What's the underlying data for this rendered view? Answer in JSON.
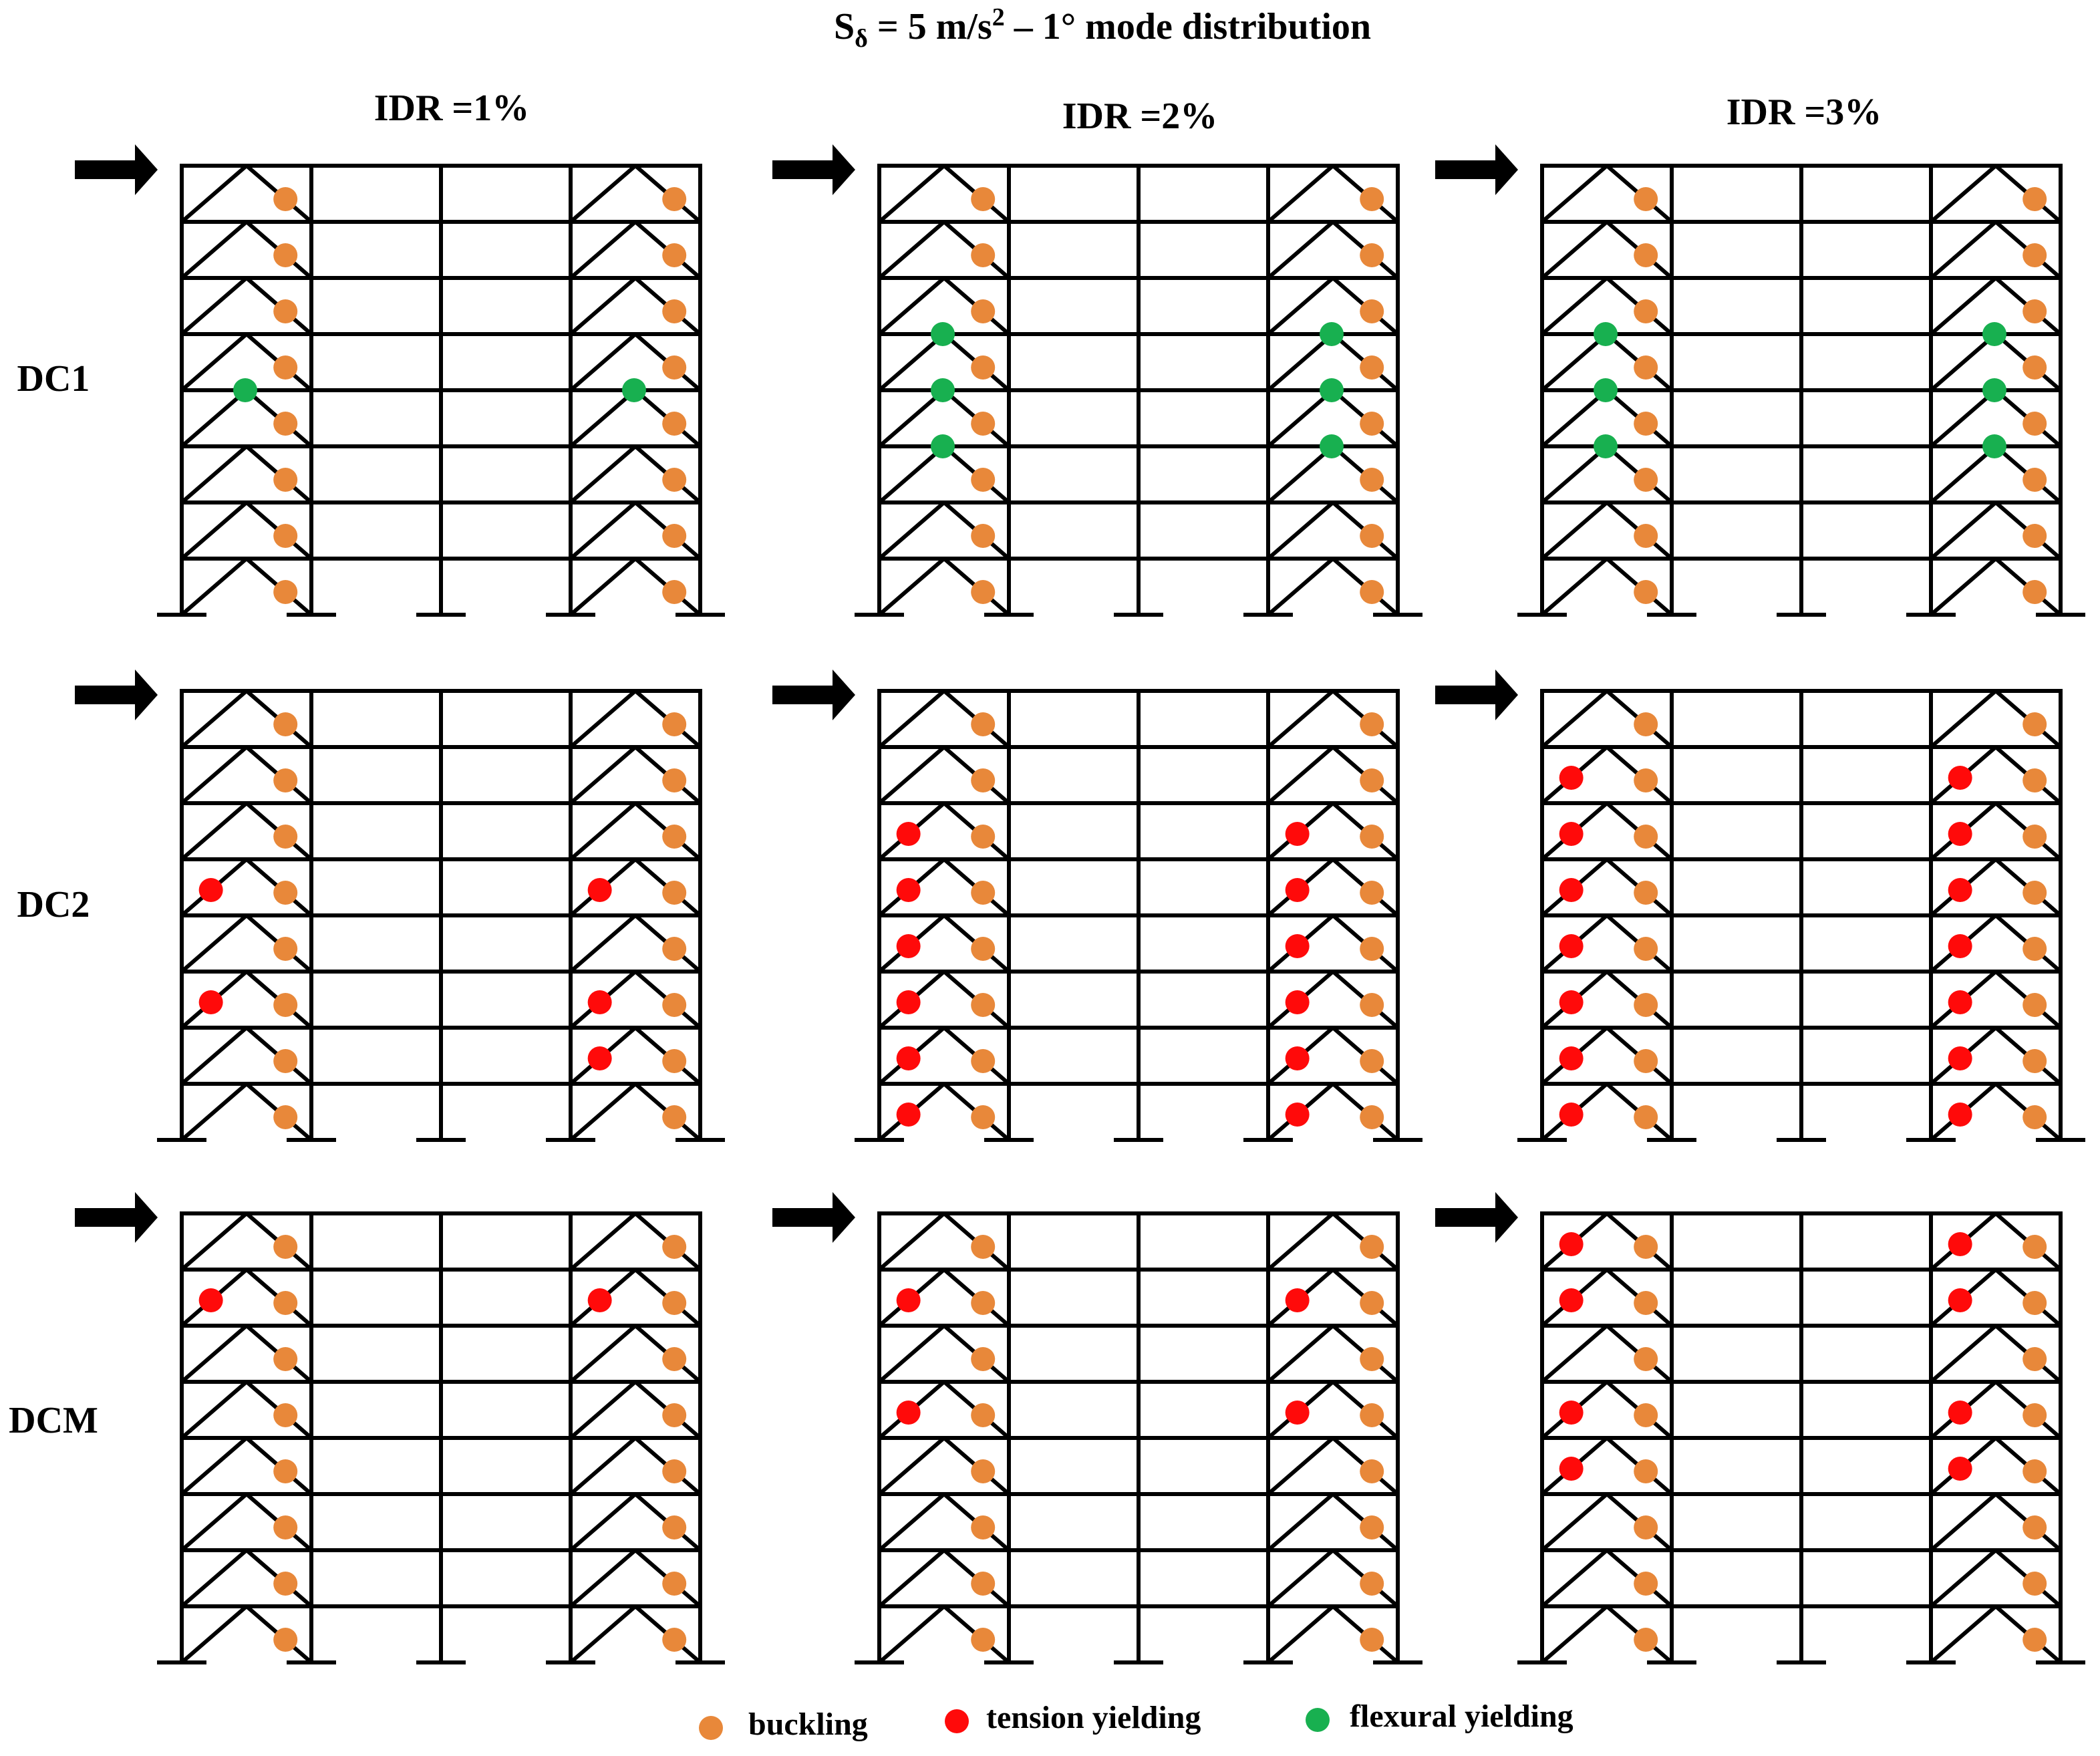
{
  "title": {
    "prefix": "S",
    "subscript": "δ",
    "middle": " = 5 m/s",
    "superscript": "2",
    "suffix": " – 1° mode distribution"
  },
  "columns": [
    "IDR =1%",
    "IDR =2%",
    "IDR =3%"
  ],
  "rows": [
    "DC1",
    "DC2",
    "DCM"
  ],
  "stories": 8,
  "colors": {
    "buckling": "#e8883a",
    "tension_yielding": "#ff0a0a",
    "flexural_yielding": "#18b050",
    "frame": "#000000"
  },
  "legend": [
    {
      "key": "buckling",
      "label": "buckling"
    },
    {
      "key": "tension_yielding",
      "label": "tension yielding"
    },
    {
      "key": "flexural_yielding",
      "label": "flexural yielding"
    }
  ],
  "panels": [
    {
      "row": "DC1",
      "column": "IDR =1%",
      "buckling_stories": [
        1,
        2,
        3,
        4,
        5,
        6,
        7,
        8
      ],
      "tension_yielding_stories": [],
      "flexural_yielding_levels": [
        4
      ]
    },
    {
      "row": "DC1",
      "column": "IDR =2%",
      "buckling_stories": [
        1,
        2,
        3,
        4,
        5,
        6,
        7,
        8
      ],
      "tension_yielding_stories": [],
      "flexural_yielding_levels": [
        3,
        4,
        5
      ]
    },
    {
      "row": "DC1",
      "column": "IDR =3%",
      "buckling_stories": [
        1,
        2,
        3,
        4,
        5,
        6,
        7,
        8
      ],
      "tension_yielding_stories": [],
      "flexural_yielding_levels": [
        3,
        4,
        5
      ]
    },
    {
      "row": "DC2",
      "column": "IDR =1%",
      "buckling_stories": [
        1,
        2,
        3,
        4,
        5,
        6,
        7,
        8
      ],
      "tension_yielding_stories": [
        3,
        5
      ],
      "tension_yielding_stories_right": [
        2,
        3,
        5
      ],
      "flexural_yielding_levels": []
    },
    {
      "row": "DC2",
      "column": "IDR =2%",
      "buckling_stories": [
        1,
        2,
        3,
        4,
        5,
        6,
        7,
        8
      ],
      "tension_yielding_stories": [
        1,
        2,
        3,
        4,
        5,
        6
      ],
      "flexural_yielding_levels": []
    },
    {
      "row": "DC2",
      "column": "IDR =3%",
      "buckling_stories": [
        1,
        2,
        3,
        4,
        5,
        6,
        7,
        8
      ],
      "tension_yielding_stories": [
        1,
        2,
        3,
        4,
        5,
        6,
        7
      ],
      "flexural_yielding_levels": []
    },
    {
      "row": "DCM",
      "column": "IDR =1%",
      "buckling_stories": [
        1,
        2,
        3,
        4,
        5,
        6,
        7,
        8
      ],
      "tension_yielding_stories": [
        7
      ],
      "flexural_yielding_levels": []
    },
    {
      "row": "DCM",
      "column": "IDR =2%",
      "buckling_stories": [
        1,
        2,
        3,
        4,
        5,
        6,
        7,
        8
      ],
      "tension_yielding_stories": [
        5,
        7
      ],
      "flexural_yielding_levels": []
    },
    {
      "row": "DCM",
      "column": "IDR =3%",
      "buckling_stories": [
        1,
        2,
        3,
        4,
        5,
        6,
        7,
        8
      ],
      "tension_yielding_stories": [
        4,
        5,
        7,
        8
      ],
      "flexural_yielding_levels": []
    }
  ]
}
